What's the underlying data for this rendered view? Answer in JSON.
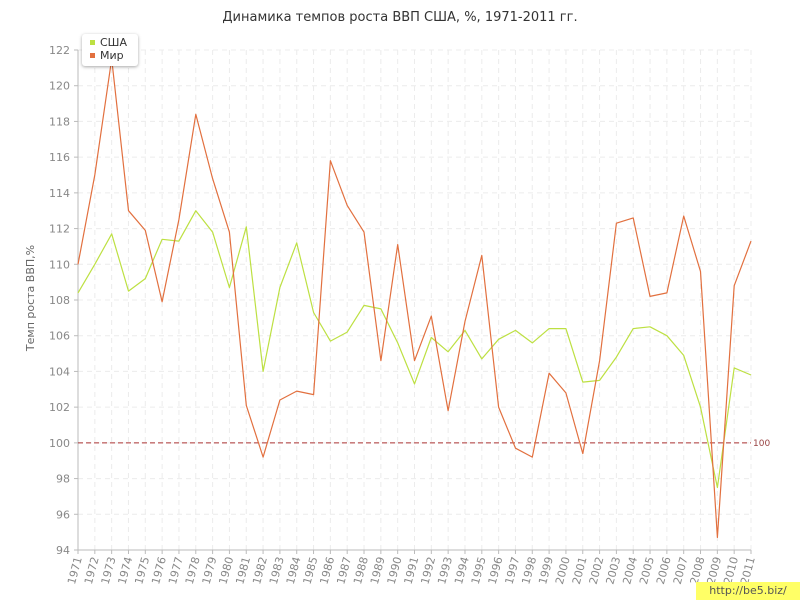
{
  "chart_data": {
    "type": "line",
    "title": "Динамика темпов роста ВВП США, %, 1971-2011 гг.",
    "ylabel": "Темп роста ВВП,%",
    "xlabel": "",
    "ylim": [
      94,
      122
    ],
    "yticks": [
      94,
      96,
      98,
      100,
      102,
      104,
      106,
      108,
      110,
      112,
      114,
      116,
      118,
      120,
      122
    ],
    "grid": true,
    "legend_position": "top-left",
    "x": [
      "1971",
      "1972",
      "1973",
      "1974",
      "1975",
      "1976",
      "1977",
      "1978",
      "1979",
      "1980",
      "1981",
      "1982",
      "1983",
      "1984",
      "1985",
      "1986",
      "1987",
      "1988",
      "1989",
      "1990",
      "1991",
      "1992",
      "1993",
      "1994",
      "1995",
      "1996",
      "1997",
      "1998",
      "1999",
      "2000",
      "2001",
      "2002",
      "2003",
      "2004",
      "2005",
      "2006",
      "2007",
      "2008",
      "2009",
      "2010",
      "2011"
    ],
    "series": [
      {
        "name": "США",
        "color": "#bde042",
        "values": [
          108.4,
          110.0,
          111.7,
          108.5,
          109.2,
          111.4,
          111.3,
          113.0,
          111.8,
          108.7,
          112.1,
          104.0,
          108.7,
          111.2,
          107.3,
          105.7,
          106.2,
          107.7,
          107.5,
          105.6,
          103.3,
          105.9,
          105.1,
          106.3,
          104.7,
          105.8,
          106.3,
          105.6,
          106.4,
          106.4,
          103.4,
          103.5,
          104.8,
          106.4,
          106.5,
          106.0,
          104.9,
          102.0,
          97.5,
          104.2,
          103.8
        ]
      },
      {
        "name": "Мир",
        "color": "#e2703f",
        "values": [
          110.0,
          115.0,
          121.5,
          113.0,
          111.9,
          107.9,
          112.5,
          118.4,
          114.8,
          111.8,
          102.1,
          99.2,
          102.4,
          102.9,
          102.7,
          115.8,
          113.3,
          111.8,
          104.6,
          111.1,
          104.6,
          107.1,
          101.8,
          106.8,
          110.5,
          102.0,
          99.7,
          99.2,
          103.9,
          102.8,
          99.4,
          104.6,
          112.3,
          112.6,
          108.2,
          108.4,
          112.7,
          109.6,
          94.7,
          108.8,
          111.3
        ]
      }
    ],
    "reference_line": {
      "value": 100,
      "label": "100",
      "color": "#aa3333"
    }
  },
  "watermark": "http://be5.biz/"
}
